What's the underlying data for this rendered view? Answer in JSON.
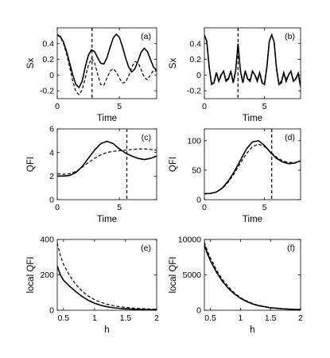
{
  "chart_data": [
    {
      "panel_label": "(a)",
      "type": "line",
      "xlabel": "Time",
      "ylabel": "Sx",
      "xlim": [
        0,
        8
      ],
      "ylim": [
        -0.3,
        0.6
      ],
      "xticks": [
        0,
        5
      ],
      "yticks": [
        -0.2,
        0,
        0.2,
        0.4
      ],
      "series": [
        {
          "style": "solid",
          "x": [
            0,
            0.25,
            0.5,
            0.75,
            1,
            1.25,
            1.5,
            1.75,
            2,
            2.25,
            2.5,
            2.75,
            3,
            3.25,
            3.5,
            3.75,
            4,
            4.25,
            4.5,
            4.75,
            5,
            5.25,
            5.5,
            5.75,
            6,
            6.25,
            6.5,
            6.75,
            7,
            7.25,
            7.5,
            7.75,
            8
          ],
          "values": [
            0.51,
            0.49,
            0.42,
            0.3,
            0.15,
            0.0,
            -0.12,
            -0.16,
            -0.08,
            0.1,
            0.25,
            0.32,
            0.3,
            0.22,
            0.15,
            0.14,
            0.22,
            0.35,
            0.47,
            0.52,
            0.48,
            0.36,
            0.22,
            0.1,
            0.04,
            0.08,
            0.18,
            0.29,
            0.34,
            0.3,
            0.2,
            0.1,
            0.06
          ]
        },
        {
          "style": "dashed",
          "x": [
            0,
            0.25,
            0.5,
            0.75,
            1,
            1.25,
            1.5,
            1.75,
            2,
            2.25,
            2.5,
            2.75,
            3,
            3.25,
            3.5,
            3.75,
            4,
            4.25,
            4.5,
            4.75,
            5,
            5.25,
            5.5,
            5.75,
            6,
            6.25,
            6.5,
            6.75,
            7,
            7.25,
            7.5,
            7.75,
            8
          ],
          "values": [
            0.51,
            0.48,
            0.4,
            0.27,
            0.1,
            -0.08,
            -0.21,
            -0.25,
            -0.19,
            -0.04,
            0.12,
            0.21,
            0.16,
            0.01,
            -0.12,
            -0.13,
            -0.04,
            0.05,
            0.08,
            0.04,
            -0.04,
            -0.1,
            -0.09,
            -0.01,
            0.1,
            0.17,
            0.16,
            0.07,
            -0.03,
            -0.06,
            0.0,
            0.06,
            0.05
          ]
        }
      ],
      "vline_x": 2.8
    },
    {
      "panel_label": "(b)",
      "type": "line",
      "xlabel": "Time",
      "ylabel": "Sx",
      "xlim": [
        0,
        8
      ],
      "ylim": [
        -0.3,
        0.6
      ],
      "xticks": [
        0,
        5
      ],
      "yticks": [
        -0.2,
        0,
        0.2,
        0.4
      ],
      "series": [
        {
          "style": "solid",
          "x": [
            0,
            0.2,
            0.4,
            0.6,
            0.8,
            1,
            1.2,
            1.4,
            1.6,
            1.8,
            2,
            2.2,
            2.4,
            2.6,
            2.8,
            3,
            3.2,
            3.4,
            3.6,
            3.8,
            4,
            4.2,
            4.4,
            4.6,
            4.8,
            5,
            5.2,
            5.4,
            5.6,
            5.8,
            6,
            6.2,
            6.4,
            6.6,
            6.8,
            7,
            7.2,
            7.4,
            7.6,
            7.8,
            8
          ],
          "values": [
            0.51,
            0.43,
            0.1,
            -0.12,
            -0.1,
            0.03,
            -0.08,
            0.0,
            0.05,
            -0.08,
            -0.05,
            0.05,
            -0.1,
            0.05,
            0.4,
            0.05,
            -0.1,
            0.05,
            -0.05,
            -0.08,
            0.05,
            0.0,
            -0.08,
            0.03,
            -0.1,
            -0.12,
            0.1,
            0.43,
            0.51,
            0.42,
            0.08,
            -0.12,
            -0.1,
            0.03,
            -0.08,
            0.0,
            0.05,
            -0.08,
            -0.05,
            0.02,
            -0.15
          ]
        },
        {
          "style": "dashed",
          "x": [
            0,
            0.2,
            0.4,
            0.6,
            0.8,
            1,
            1.2,
            1.4,
            1.6,
            1.8,
            2,
            2.2,
            2.4,
            2.6,
            2.8,
            3,
            3.2,
            3.4,
            3.6,
            3.8,
            4,
            4.2,
            4.4,
            4.6,
            4.8,
            5,
            5.2,
            5.4,
            5.6,
            5.8,
            6,
            6.2,
            6.4,
            6.6,
            6.8,
            7,
            7.2,
            7.4,
            7.6,
            7.8,
            8
          ],
          "values": [
            0.51,
            0.43,
            0.12,
            -0.1,
            -0.08,
            0.04,
            -0.06,
            0.01,
            0.05,
            -0.06,
            -0.04,
            0.05,
            -0.08,
            0.06,
            0.38,
            0.06,
            -0.08,
            0.05,
            -0.04,
            -0.06,
            0.05,
            0.01,
            -0.06,
            0.04,
            -0.08,
            -0.1,
            0.12,
            0.43,
            0.51,
            0.42,
            0.1,
            -0.1,
            -0.08,
            0.04,
            -0.06,
            0.01,
            0.05,
            -0.06,
            -0.04,
            0.03,
            -0.12
          ]
        }
      ],
      "vline_x": 2.8
    },
    {
      "panel_label": "(c)",
      "type": "line",
      "xlabel": "Time",
      "ylabel": "QFI",
      "xlim": [
        0,
        8
      ],
      "ylim": [
        0,
        6
      ],
      "xticks": [
        0,
        5
      ],
      "yticks": [
        0,
        2,
        4,
        6
      ],
      "series": [
        {
          "style": "solid",
          "x": [
            0,
            0.5,
            1,
            1.5,
            2,
            2.5,
            3,
            3.5,
            4,
            4.5,
            5,
            5.5,
            6,
            6.5,
            7,
            7.5,
            8
          ],
          "values": [
            2.0,
            2.0,
            2.05,
            2.3,
            2.8,
            3.5,
            4.2,
            4.75,
            4.95,
            4.75,
            4.3,
            3.95,
            3.7,
            3.5,
            3.4,
            3.5,
            3.7
          ]
        },
        {
          "style": "dashed",
          "x": [
            0,
            0.5,
            1,
            1.5,
            2,
            2.5,
            3,
            3.5,
            4,
            4.5,
            5,
            5.5,
            6,
            6.5,
            7,
            7.5,
            8
          ],
          "values": [
            2.2,
            2.15,
            2.2,
            2.4,
            2.75,
            3.15,
            3.5,
            3.8,
            4.0,
            4.1,
            4.15,
            4.2,
            4.25,
            4.3,
            4.3,
            4.25,
            4.2
          ]
        }
      ],
      "vline_x": 5.6
    },
    {
      "panel_label": "(d)",
      "type": "line",
      "xlabel": "Time",
      "ylabel": "QFI",
      "xlim": [
        0,
        8
      ],
      "ylim": [
        0,
        120
      ],
      "xticks": [
        0,
        5
      ],
      "yticks": [
        0,
        50,
        100
      ],
      "series": [
        {
          "style": "solid",
          "x": [
            0,
            0.5,
            1,
            1.5,
            2,
            2.5,
            3,
            3.5,
            4,
            4.5,
            5,
            5.5,
            6,
            6.5,
            7,
            7.5,
            8
          ],
          "values": [
            10,
            10.5,
            13,
            20,
            32,
            48,
            67,
            86,
            98,
            100,
            92,
            80,
            70,
            64,
            61,
            62,
            66
          ]
        },
        {
          "style": "dashed",
          "x": [
            0,
            0.5,
            1,
            1.5,
            2,
            2.5,
            3,
            3.5,
            4,
            4.5,
            5,
            5.5,
            6,
            6.5,
            7,
            7.5,
            8
          ],
          "values": [
            10,
            10.5,
            13,
            19,
            30,
            45,
            62,
            78,
            90,
            94,
            90,
            81,
            72,
            66,
            63,
            63,
            65
          ]
        }
      ],
      "vline_x": 5.6
    },
    {
      "panel_label": "(e)",
      "type": "line",
      "xlabel": "h",
      "ylabel": "local QFI",
      "xlim": [
        0.4,
        2
      ],
      "ylim": [
        0,
        400
      ],
      "xticks": [
        0.5,
        1,
        1.5,
        2
      ],
      "yticks": [
        0,
        200,
        400
      ],
      "series": [
        {
          "style": "solid",
          "x": [
            0.4,
            0.45,
            0.5,
            0.6,
            0.7,
            0.8,
            0.9,
            1.0,
            1.1,
            1.2,
            1.3,
            1.5,
            1.7,
            1.9,
            2.0
          ],
          "values": [
            250,
            200,
            170,
            135,
            105,
            78,
            56,
            40,
            28,
            20,
            14,
            8,
            5,
            3,
            3
          ]
        },
        {
          "style": "dashed",
          "x": [
            0.4,
            0.45,
            0.5,
            0.6,
            0.7,
            0.8,
            0.9,
            1.0,
            1.1,
            1.2,
            1.3,
            1.5,
            1.7,
            1.9,
            2.0
          ],
          "values": [
            380,
            310,
            260,
            195,
            145,
            108,
            80,
            60,
            45,
            34,
            26,
            16,
            10,
            7,
            6
          ]
        }
      ]
    },
    {
      "panel_label": "(f)",
      "type": "line",
      "xlabel": "h",
      "ylabel": "local QFI",
      "xlim": [
        0.4,
        2
      ],
      "ylim": [
        0,
        10000
      ],
      "xticks": [
        0.5,
        1,
        1.5,
        2
      ],
      "yticks": [
        0,
        5000,
        10000
      ],
      "series": [
        {
          "style": "solid",
          "x": [
            0.4,
            0.45,
            0.5,
            0.6,
            0.7,
            0.8,
            0.9,
            1.0,
            1.1,
            1.2,
            1.3,
            1.5,
            1.7,
            1.9,
            2.0
          ],
          "values": [
            9200,
            8000,
            7000,
            5400,
            4100,
            3100,
            2300,
            1700,
            1250,
            900,
            650,
            350,
            200,
            120,
            100
          ]
        },
        {
          "style": "dashed",
          "x": [
            0.4,
            0.45,
            0.5,
            0.6,
            0.7,
            0.8,
            0.9,
            1.0,
            1.1,
            1.2,
            1.3,
            1.5,
            1.7,
            1.9,
            2.0
          ],
          "values": [
            9600,
            8400,
            7400,
            5700,
            4350,
            3300,
            2450,
            1800,
            1330,
            960,
            700,
            380,
            220,
            130,
            110
          ]
        }
      ]
    }
  ]
}
